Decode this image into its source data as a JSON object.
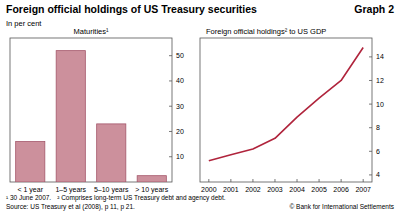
{
  "header": {
    "title": "Foreign official holdings of US Treasury securities",
    "graph_label": "Graph 2",
    "subtitle": "In per cent"
  },
  "chart_data": [
    {
      "type": "bar",
      "title": "Maturities¹",
      "categories": [
        "< 1 year",
        "1–5 years",
        "5–10 years",
        "> 10 years"
      ],
      "values": [
        16,
        52,
        23,
        2.5
      ],
      "color": "#cc909c",
      "ylim": [
        0,
        57
      ],
      "yticks": [
        10,
        20,
        30,
        40,
        50
      ],
      "grid": false
    },
    {
      "type": "line",
      "title": "Foreign official holdings² to US GDP",
      "x": [
        2000,
        2001,
        2002,
        2003,
        2004,
        2005,
        2006,
        2007
      ],
      "values": [
        5.2,
        5.7,
        6.2,
        7.1,
        8.9,
        10.5,
        12.0,
        14.8
      ],
      "color": "#b0243c",
      "xlim": [
        1999.6,
        2007.4
      ],
      "xticks": [
        2000,
        2001,
        2002,
        2003,
        2004,
        2005,
        2006,
        2007
      ],
      "ylim": [
        3.4,
        15.6
      ],
      "yticks": [
        4,
        6,
        8,
        10,
        12,
        14
      ],
      "grid": false
    }
  ],
  "footer": {
    "notes": [
      "¹ 30 June 2007.",
      "² Comprises long-term US Treasury debt and agency debt."
    ],
    "source": "Source: US Treasury et al (2008), p 11, p 21.",
    "copyright": "© Bank for International Settlements"
  }
}
